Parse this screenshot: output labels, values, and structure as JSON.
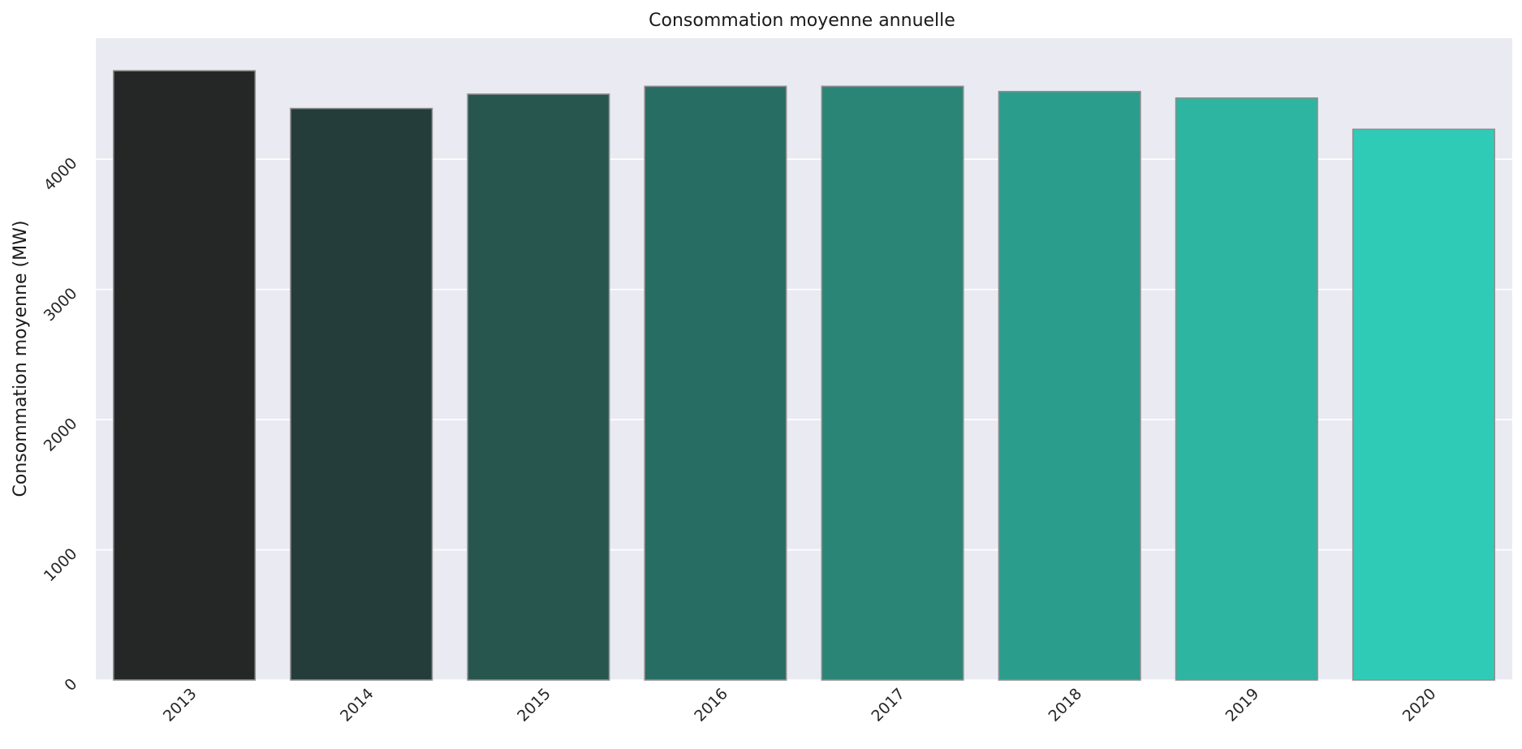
{
  "chart_data": {
    "type": "bar",
    "title": "Consommation moyenne annuelle",
    "xlabel": "",
    "ylabel": "Consommation moyenne (MW)",
    "categories": [
      "2013",
      "2014",
      "2015",
      "2016",
      "2017",
      "2018",
      "2019",
      "2020"
    ],
    "values": [
      4680,
      4390,
      4500,
      4560,
      4560,
      4520,
      4470,
      4230
    ],
    "ylim": [
      0,
      4930
    ],
    "yticks": [
      0,
      1000,
      2000,
      3000,
      4000
    ],
    "ytick_labels": [
      "0",
      "1000",
      "2000",
      "3000",
      "4000"
    ],
    "grid": true,
    "legend": "none",
    "colors": {
      "plot_background": "#eaeaf2",
      "grid": "#ffffff",
      "bar_edge": "#8f8f8f",
      "bars": [
        "#252726",
        "#243c3a",
        "#27564f",
        "#286d63",
        "#2a8577",
        "#2b9d8c",
        "#2db5a1",
        "#30cbb6"
      ]
    }
  }
}
